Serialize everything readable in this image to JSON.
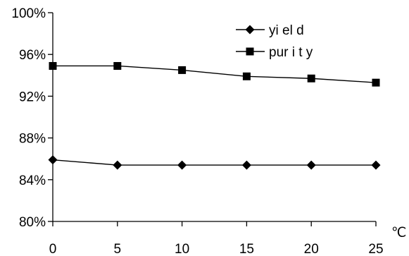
{
  "chart_data": {
    "type": "line",
    "x": [
      0,
      5,
      10,
      15,
      20,
      25
    ],
    "x_tick_labels": [
      "0",
      "5",
      "10",
      "15",
      "20",
      "25"
    ],
    "x_unit": "℃",
    "ylim": [
      0.8,
      1.0
    ],
    "y_ticks": [
      0.8,
      0.84,
      0.88,
      0.92,
      0.96,
      1.0
    ],
    "y_tick_labels": [
      "80%",
      "84%",
      "88%",
      "92%",
      "96%",
      "100%"
    ],
    "grid": false,
    "legend_position": "top-right",
    "series": [
      {
        "name": "yi el d",
        "marker": "diamond",
        "color": "#000000",
        "values": [
          0.859,
          0.854,
          0.854,
          0.854,
          0.854,
          0.854
        ]
      },
      {
        "name": "pur i t y",
        "marker": "square",
        "color": "#000000",
        "values": [
          0.949,
          0.949,
          0.945,
          0.939,
          0.937,
          0.933
        ]
      }
    ]
  }
}
